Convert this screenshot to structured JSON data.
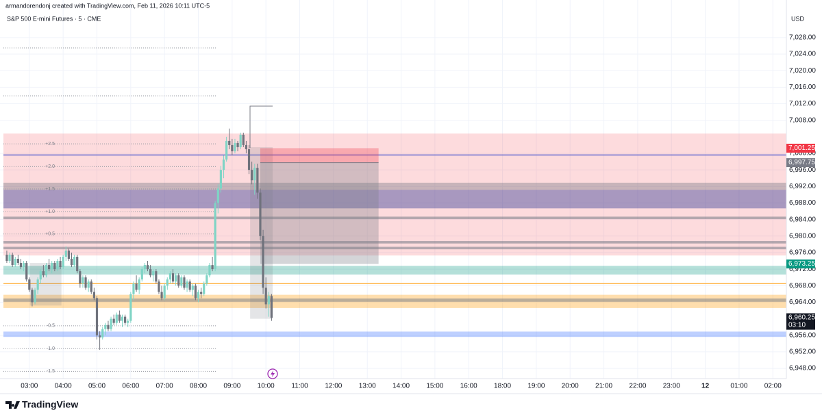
{
  "chart_data": {
    "type": "candlestick",
    "subtitle": "armandorendonj created with TradingView.com, Feb 11, 2026 10:11 UTC-5",
    "title": "S&P 500 E-mini Futures · 5 · CME",
    "currency": "USD",
    "brand": "TradingView",
    "up_color": "#7fd4c5",
    "down_color": "#6f727c",
    "grid": true,
    "session_break": [
      1020,
      1080
    ],
    "xlim": [
      134,
      1584
    ],
    "ylim": [
      6945.2,
      7034.6
    ],
    "xticks": [
      {
        "value": 180,
        "label": "03:00"
      },
      {
        "value": 240,
        "label": "04:00"
      },
      {
        "value": 300,
        "label": "05:00"
      },
      {
        "value": 360,
        "label": "06:00"
      },
      {
        "value": 420,
        "label": "07:00"
      },
      {
        "value": 480,
        "label": "08:00"
      },
      {
        "value": 540,
        "label": "09:00"
      },
      {
        "value": 600,
        "label": "10:00"
      },
      {
        "value": 660,
        "label": "11:00"
      },
      {
        "value": 720,
        "label": "12:00"
      },
      {
        "value": 780,
        "label": "13:00"
      },
      {
        "value": 840,
        "label": "14:00"
      },
      {
        "value": 900,
        "label": "15:00"
      },
      {
        "value": 960,
        "label": "16:00"
      },
      {
        "value": 1080,
        "label": "18:00"
      },
      {
        "value": 1140,
        "label": "19:00"
      },
      {
        "value": 1200,
        "label": "20:00"
      },
      {
        "value": 1260,
        "label": "21:00"
      },
      {
        "value": 1320,
        "label": "22:00"
      },
      {
        "value": 1380,
        "label": "23:00"
      },
      {
        "value": 1440,
        "label": "12"
      },
      {
        "value": 1500,
        "label": "01:00"
      },
      {
        "value": 1560,
        "label": "02:00"
      }
    ],
    "yticks": [
      {
        "value": 6948,
        "label": "6,948.00"
      },
      {
        "value": 6952,
        "label": "6,952.00"
      },
      {
        "value": 6956,
        "label": "6,956.00"
      },
      {
        "value": 6964,
        "label": "6,964.00"
      },
      {
        "value": 6968,
        "label": "6,968.00"
      },
      {
        "value": 6972,
        "label": "6,972.00"
      },
      {
        "value": 6976,
        "label": "6,976.00"
      },
      {
        "value": 6980,
        "label": "6,980.00"
      },
      {
        "value": 6984,
        "label": "6,984.00"
      },
      {
        "value": 6988,
        "label": "6,988.00"
      },
      {
        "value": 6992,
        "label": "6,992.00"
      },
      {
        "value": 6996,
        "label": "6,996.00"
      },
      {
        "value": 7000,
        "label": "7,000.00"
      },
      {
        "value": 7008,
        "label": "7,008.00"
      },
      {
        "value": 7012,
        "label": "7,012.00"
      },
      {
        "value": 7016,
        "label": "7,016.00"
      },
      {
        "value": 7020,
        "label": "7,020.00"
      },
      {
        "value": 7024,
        "label": "7,024.00"
      },
      {
        "value": 7028,
        "label": "7,028.00"
      }
    ],
    "x": [
      140,
      145,
      150,
      155,
      160,
      165,
      170,
      175,
      180,
      185,
      190,
      195,
      200,
      205,
      210,
      215,
      220,
      225,
      230,
      235,
      240,
      245,
      250,
      255,
      260,
      265,
      270,
      275,
      280,
      285,
      290,
      295,
      300,
      305,
      310,
      315,
      320,
      325,
      330,
      335,
      340,
      345,
      350,
      355,
      360,
      365,
      370,
      375,
      380,
      385,
      390,
      395,
      400,
      405,
      410,
      415,
      420,
      425,
      430,
      435,
      440,
      445,
      450,
      455,
      460,
      465,
      470,
      475,
      480,
      485,
      490,
      495,
      500,
      505,
      510,
      515,
      520,
      525,
      530,
      535,
      540,
      545,
      550,
      555,
      560,
      565,
      570,
      575,
      580,
      585,
      590,
      595,
      600,
      605,
      610
    ],
    "open": [
      6975.5,
      6974.0,
      6975.5,
      6973.0,
      6974.5,
      6973.5,
      6972.5,
      6973.5,
      6969.5,
      6967.0,
      6964.0,
      6967.0,
      6969.5,
      6971.5,
      6970.5,
      6973.0,
      6972.0,
      6973.5,
      6972.0,
      6974.0,
      6972.5,
      6975.0,
      6976.5,
      6974.5,
      6973.0,
      6975.0,
      6971.5,
      6968.5,
      6970.0,
      6967.5,
      6969.0,
      6966.5,
      6965.0,
      6956.0,
      6955.5,
      6957.5,
      6958.5,
      6957.5,
      6960.0,
      6959.0,
      6961.0,
      6959.5,
      6960.5,
      6959.0,
      6959.5,
      6966.0,
      6968.5,
      6967.0,
      6969.5,
      6972.0,
      6973.0,
      6972.0,
      6970.5,
      6971.5,
      6969.0,
      6966.5,
      6965.0,
      6968.0,
      6969.5,
      6971.0,
      6969.0,
      6970.5,
      6968.0,
      6970.0,
      6967.5,
      6969.0,
      6967.0,
      6968.0,
      6965.0,
      6966.5,
      6966.0,
      6968.5,
      6970.5,
      6973.0,
      6972.0,
      6988.0,
      6991.5,
      6996.0,
      6998.5,
      7003.0,
      7002.0,
      7000.5,
      7002.5,
      7001.5,
      7004.5,
      7002.0,
      7001.0,
      6996.0,
      6993.5,
      6996.5,
      6990.5,
      6980.0,
      6967.5,
      6963.5,
      6965.5
    ],
    "high": [
      6976.5,
      6976.0,
      6976.0,
      6975.0,
      6975.5,
      6974.5,
      6974.0,
      6974.0,
      6970.0,
      6967.5,
      6967.5,
      6970.0,
      6972.0,
      6973.0,
      6973.5,
      6974.5,
      6974.0,
      6974.0,
      6974.5,
      6975.0,
      6975.5,
      6977.5,
      6977.0,
      6976.0,
      6975.5,
      6975.5,
      6972.0,
      6970.5,
      6970.5,
      6969.5,
      6969.5,
      6967.5,
      6965.5,
      6957.0,
      6958.0,
      6959.0,
      6959.5,
      6960.5,
      6961.0,
      6961.5,
      6962.0,
      6961.0,
      6961.0,
      6960.0,
      6966.5,
      6969.0,
      6970.5,
      6970.0,
      6972.5,
      6973.5,
      6974.0,
      6973.0,
      6972.0,
      6972.0,
      6969.5,
      6968.0,
      6968.5,
      6970.0,
      6971.5,
      6972.0,
      6971.0,
      6971.0,
      6970.5,
      6970.5,
      6969.5,
      6969.5,
      6968.5,
      6968.5,
      6967.0,
      6967.5,
      6969.0,
      6971.0,
      6973.5,
      6975.0,
      6988.5,
      6992.5,
      6997.0,
      6999.5,
      7004.0,
      7006.0,
      7003.5,
      7003.5,
      7003.0,
      7005.0,
      7005.0,
      7003.0,
      7002.0,
      6998.0,
      6997.5,
      6997.5,
      6991.5,
      6981.5,
      6970.0,
      6966.5,
      6966.0
    ],
    "low": [
      6973.5,
      6973.5,
      6972.5,
      6972.5,
      6973.0,
      6972.0,
      6971.5,
      6969.0,
      6966.5,
      6963.0,
      6963.5,
      6966.0,
      6968.5,
      6970.0,
      6970.0,
      6971.5,
      6971.0,
      6971.5,
      6971.5,
      6972.0,
      6972.0,
      6974.0,
      6974.0,
      6972.5,
      6972.5,
      6971.0,
      6967.5,
      6967.5,
      6967.0,
      6966.5,
      6966.0,
      6964.5,
      6955.0,
      6952.5,
      6955.0,
      6956.0,
      6957.0,
      6957.0,
      6958.5,
      6958.5,
      6959.0,
      6958.0,
      6958.5,
      6958.0,
      6959.0,
      6964.5,
      6966.5,
      6966.0,
      6969.0,
      6971.0,
      6971.5,
      6970.0,
      6969.0,
      6968.5,
      6966.0,
      6964.5,
      6964.5,
      6967.0,
      6968.5,
      6968.5,
      6968.0,
      6967.5,
      6967.5,
      6967.0,
      6966.5,
      6966.5,
      6965.5,
      6964.5,
      6964.0,
      6965.0,
      6965.5,
      6968.0,
      6970.0,
      6971.5,
      6971.5,
      6985.5,
      6990.5,
      6994.0,
      6998.0,
      7001.0,
      6999.5,
      7000.0,
      7000.5,
      7001.0,
      7001.5,
      7000.0,
      6995.0,
      6992.5,
      6990.0,
      6989.0,
      6979.0,
      6966.0,
      6962.5,
      6960.5,
      6959.5
    ],
    "close": [
      6974.0,
      6975.5,
      6973.0,
      6974.5,
      6973.5,
      6972.5,
      6973.5,
      6969.5,
      6967.0,
      6964.0,
      6967.0,
      6969.5,
      6971.5,
      6970.5,
      6973.0,
      6972.0,
      6973.5,
      6972.0,
      6974.0,
      6972.5,
      6975.0,
      6976.5,
      6974.5,
      6973.0,
      6975.0,
      6971.5,
      6968.5,
      6970.0,
      6967.5,
      6969.0,
      6966.5,
      6965.0,
      6956.0,
      6955.5,
      6957.5,
      6958.5,
      6957.5,
      6960.0,
      6959.0,
      6961.0,
      6959.5,
      6960.5,
      6959.0,
      6959.5,
      6966.0,
      6968.5,
      6967.0,
      6969.5,
      6972.0,
      6973.0,
      6972.0,
      6970.5,
      6971.5,
      6969.0,
      6966.5,
      6965.0,
      6968.0,
      6969.5,
      6971.0,
      6969.0,
      6970.5,
      6968.0,
      6970.0,
      6967.5,
      6969.0,
      6967.0,
      6968.0,
      6965.0,
      6966.5,
      6966.0,
      6968.5,
      6970.5,
      6973.0,
      6972.0,
      6988.0,
      6991.5,
      6996.0,
      6998.5,
      7003.0,
      7002.0,
      7000.5,
      7002.5,
      7001.5,
      7004.5,
      7002.0,
      7001.0,
      6996.0,
      6993.5,
      6996.5,
      6990.5,
      6980.0,
      6967.5,
      6963.5,
      6965.5,
      6960.25
    ],
    "zones": [
      {
        "from": 7004.8,
        "to": 6975.3,
        "color": "rgba(242,54,69,0.18)"
      },
      {
        "from": 6992.9,
        "to": 6991.2,
        "color": "rgba(120,123,134,0.4)"
      },
      {
        "from": 6991.2,
        "to": 6986.7,
        "color": "rgba(50,60,150,0.42)"
      },
      {
        "from": 6984.7,
        "to": 6984.1,
        "color": "rgba(120,123,134,0.55)"
      },
      {
        "from": 6978.8,
        "to": 6978.2,
        "color": "rgba(120,123,134,0.55)"
      },
      {
        "from": 6977.4,
        "to": 6976.8,
        "color": "rgba(120,123,134,0.55)"
      },
      {
        "from": 6972.8,
        "to": 6970.7,
        "color": "rgba(8,153,129,0.3)"
      },
      {
        "from": 6965.8,
        "to": 6962.6,
        "color": "rgba(255,152,0,0.32)"
      },
      {
        "from": 6964.9,
        "to": 6964.1,
        "color": "rgba(120,123,134,0.5)"
      },
      {
        "from": 6956.9,
        "to": 6955.6,
        "color": "rgba(41,98,255,0.3)"
      }
    ],
    "lines": [
      {
        "value": 6999.6,
        "color": "#6a6fd0"
      },
      {
        "value": 6968.5,
        "color": "#ffb74d"
      }
    ],
    "levels": [
      {
        "value": 7025.5
      },
      {
        "value": 7013.9
      },
      {
        "label": "+2.5",
        "value": 7002.3
      },
      {
        "label": "+2.0",
        "value": 6996.8
      },
      {
        "label": "+1.5",
        "value": 6991.4
      },
      {
        "label": "+1.0",
        "value": 6985.9
      },
      {
        "label": "+0.5",
        "value": 6980.5
      },
      {
        "label": "-0.5",
        "value": 6958.3
      },
      {
        "label": "-1.0",
        "value": 6952.8
      },
      {
        "label": "-1.5",
        "value": 6947.3
      }
    ],
    "boxes": [
      {
        "start": 181,
        "end": 237,
        "top": 6973.5,
        "bottom": 6963.2
      },
      {
        "start": 572,
        "end": 612,
        "top": 7001.5,
        "bottom": 6960.0
      }
    ],
    "position": {
      "start": 590,
      "end": 800,
      "stop": 7001.25,
      "entry": 6997.75,
      "target": 6973.25
    },
    "price_labels": [
      {
        "value": 7001.25,
        "label": "7,001.25",
        "color": "#f23645"
      },
      {
        "value": 6997.75,
        "label": "6,997.75",
        "color": "#787b86"
      },
      {
        "value": 6973.25,
        "label": "6,973.25",
        "color": "#089981"
      },
      {
        "value": 6960.25,
        "label": "6,960.25",
        "color": "#131722",
        "countdown": "03:10"
      }
    ]
  }
}
